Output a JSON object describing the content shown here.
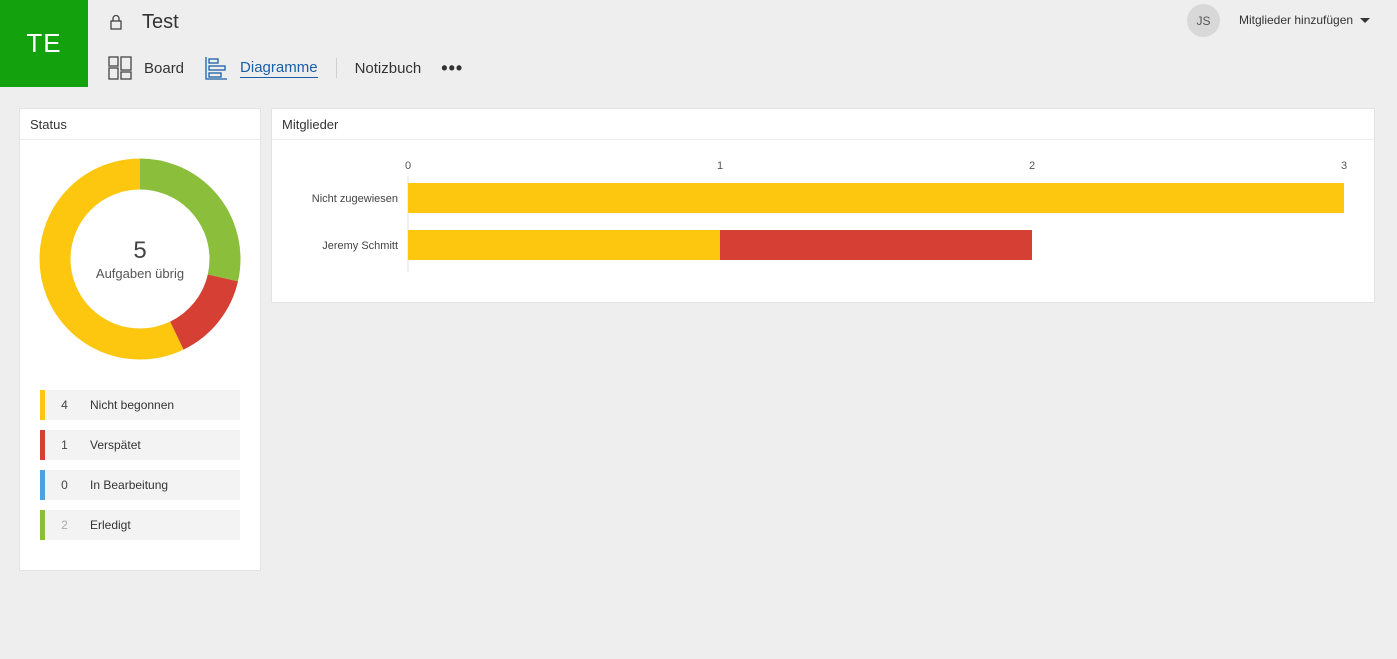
{
  "header": {
    "tile_initials": "TE",
    "plan_title": "Test",
    "nav": {
      "board": "Board",
      "charts": "Diagramme",
      "notebook": "Notizbuch"
    },
    "avatar_initials": "JS",
    "add_members": "Mitglieder hinzufügen"
  },
  "status_card": {
    "title": "Status",
    "remaining_count": "5",
    "remaining_label": "Aufgaben übrig",
    "legend": [
      {
        "count": "4",
        "label": "Nicht begonnen",
        "color": "#fdc60f"
      },
      {
        "count": "1",
        "label": "Verspätet",
        "color": "#d63f33"
      },
      {
        "count": "0",
        "label": "In Bearbeitung",
        "color": "#4aa3df"
      },
      {
        "count": "2",
        "label": "Erledigt",
        "color": "#8bbe3b"
      }
    ]
  },
  "members_card": {
    "title": "Mitglieder"
  },
  "colors": {
    "accent": "#13a10e",
    "link": "#1a5fa8",
    "not_started": "#fdc60f",
    "late": "#d63f33",
    "in_progress": "#4aa3df",
    "done": "#8bbe3b"
  },
  "chart_data": [
    {
      "type": "pie",
      "categories": [
        "Nicht begonnen",
        "Verspätet",
        "In Bearbeitung",
        "Erledigt"
      ],
      "values": [
        4,
        1,
        0,
        2
      ],
      "colors": [
        "#fdc60f",
        "#d63f33",
        "#4aa3df",
        "#8bbe3b"
      ]
    },
    {
      "type": "bar",
      "orientation": "horizontal",
      "stacked": true,
      "categories": [
        "Nicht zugewiesen",
        "Jeremy Schmitt"
      ],
      "series": [
        {
          "values": [
            3,
            1
          ],
          "color": "#fdc60f"
        },
        {
          "values": [
            0,
            1
          ],
          "color": "#d63f33"
        }
      ],
      "xlim": [
        0,
        3
      ],
      "xticks": [
        "0",
        "1",
        "2",
        "3"
      ],
      "legend": "none"
    }
  ]
}
